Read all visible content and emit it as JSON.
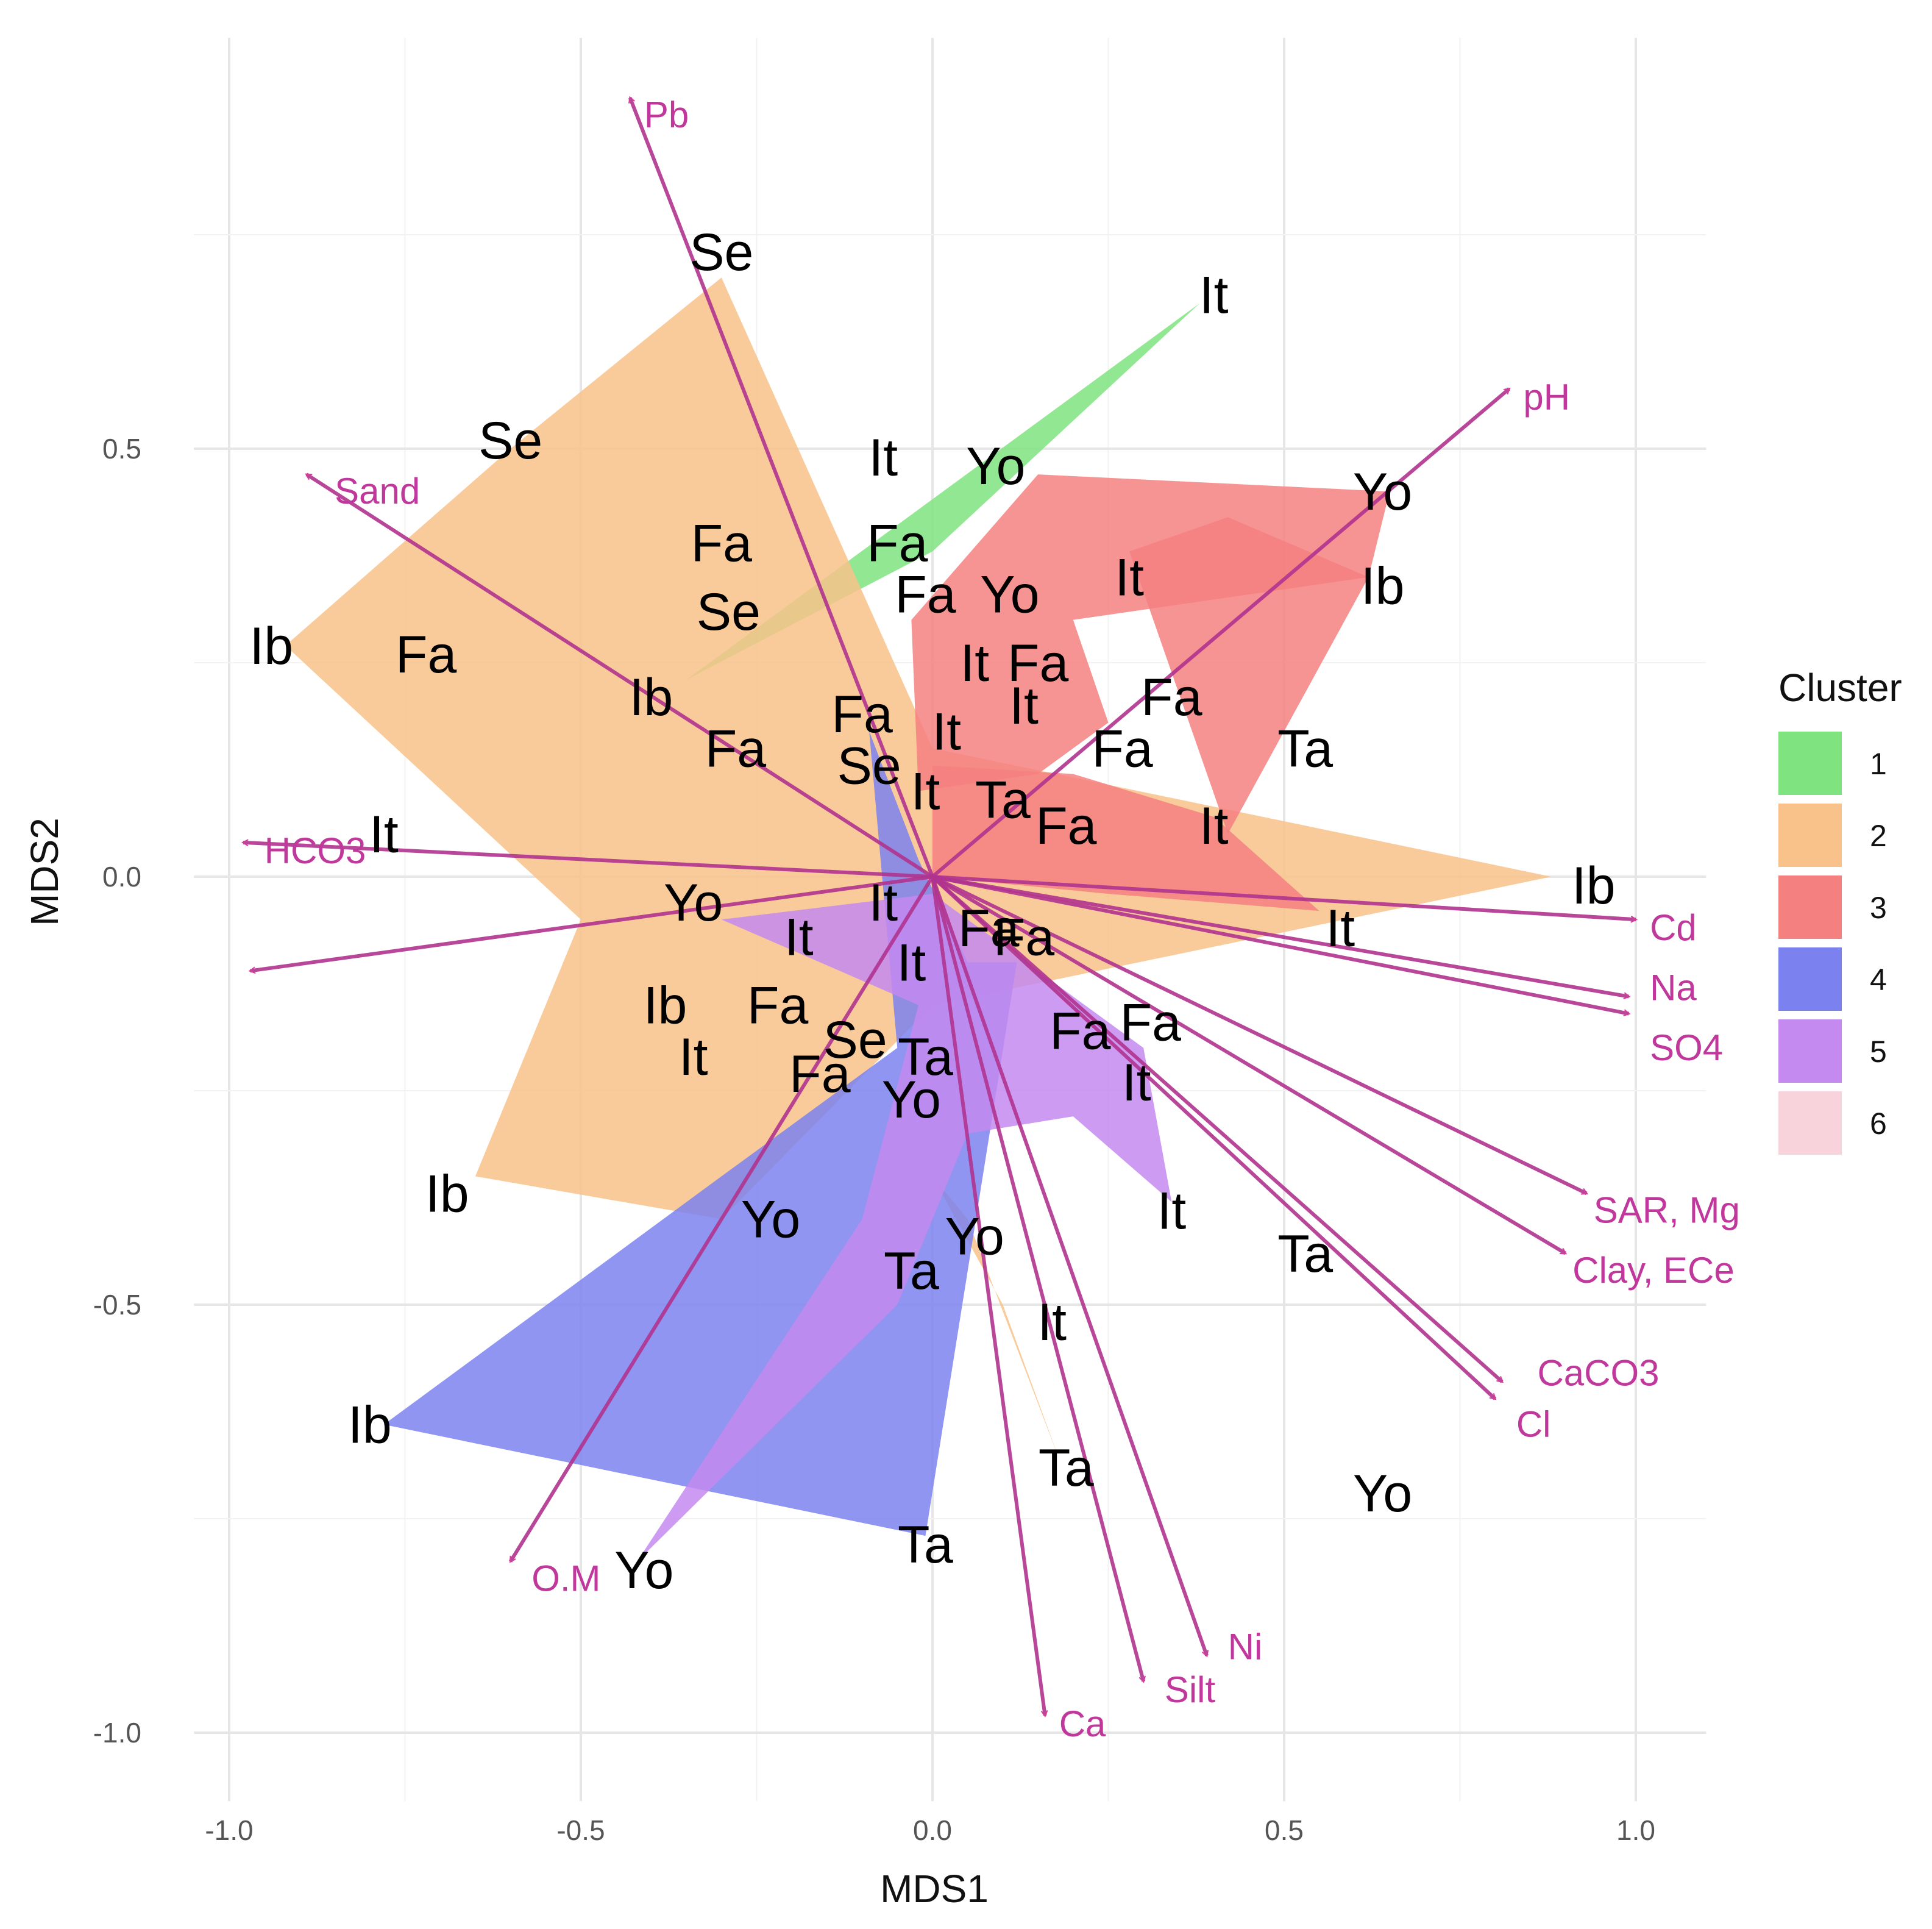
{
  "chart_data": {
    "type": "scatter",
    "xlabel": "MDS1",
    "ylabel": "MDS2",
    "xlim": [
      -1.05,
      1.1
    ],
    "ylim": [
      -1.08,
      0.98
    ],
    "x_ticks": [
      {
        "value": -1.0,
        "label": "-1.0"
      },
      {
        "value": -0.5,
        "label": "-0.5"
      },
      {
        "value": 0.0,
        "label": "0.0"
      },
      {
        "value": 0.5,
        "label": "0.5"
      },
      {
        "value": 1.0,
        "label": "1.0"
      }
    ],
    "y_ticks": [
      {
        "value": 0.5,
        "label": "0.5"
      },
      {
        "value": 0.0,
        "label": "0.0"
      },
      {
        "value": -0.5,
        "label": "-0.5"
      },
      {
        "value": -1.0,
        "label": "-1.0"
      }
    ],
    "legend": {
      "title": "Cluster",
      "entries": [
        {
          "label": "1",
          "color": "#7fe47f"
        },
        {
          "label": "2",
          "color": "#f8c28a"
        },
        {
          "label": "3",
          "color": "#f48080"
        },
        {
          "label": "4",
          "color": "#7b82ef"
        },
        {
          "label": "5",
          "color": "#c48af0"
        },
        {
          "label": "6",
          "color": "#f9d3dc"
        }
      ]
    },
    "hulls": [
      {
        "cluster": "1",
        "points": [
          [
            -0.35,
            0.23
          ],
          [
            0.38,
            0.67
          ],
          [
            0.0,
            0.38
          ]
        ]
      },
      {
        "cluster": "2",
        "points": [
          [
            -0.92,
            0.27
          ],
          [
            -0.6,
            0.5
          ],
          [
            -0.3,
            0.7
          ],
          [
            0.0,
            0.15
          ],
          [
            0.88,
            0.0
          ],
          [
            0.0,
            -0.15
          ],
          [
            -0.3,
            -0.4
          ],
          [
            -0.65,
            -0.35
          ],
          [
            -0.5,
            -0.05
          ]
        ]
      },
      {
        "cluster": "2",
        "points": [
          [
            0.0,
            -0.35
          ],
          [
            0.05,
            -0.4
          ],
          [
            0.18,
            -0.68
          ],
          [
            0.1,
            -0.5
          ]
        ]
      },
      {
        "cluster": "3",
        "points": [
          [
            -0.03,
            0.3
          ],
          [
            0.15,
            0.47
          ],
          [
            0.65,
            0.45
          ],
          [
            0.62,
            0.35
          ],
          [
            0.2,
            0.3
          ],
          [
            0.25,
            0.18
          ],
          [
            0.15,
            0.12
          ],
          [
            -0.02,
            0.1
          ]
        ]
      },
      {
        "cluster": "3",
        "points": [
          [
            0.28,
            0.38
          ],
          [
            0.42,
            0.42
          ],
          [
            0.62,
            0.35
          ],
          [
            0.42,
            0.05
          ]
        ]
      },
      {
        "cluster": "3",
        "points": [
          [
            0.0,
            0.13
          ],
          [
            0.2,
            0.12
          ],
          [
            0.4,
            0.07
          ],
          [
            0.55,
            -0.04
          ],
          [
            0.25,
            -0.02
          ],
          [
            0.0,
            0.0
          ]
        ]
      },
      {
        "cluster": "4",
        "points": [
          [
            -0.78,
            -0.64
          ],
          [
            -0.3,
            -0.35
          ],
          [
            -0.05,
            -0.2
          ],
          [
            -0.09,
            0.17
          ],
          [
            -0.02,
            0.02
          ],
          [
            0.05,
            -0.1
          ],
          [
            0.12,
            -0.1
          ],
          [
            -0.01,
            -0.77
          ]
        ]
      },
      {
        "cluster": "5",
        "points": [
          [
            -0.42,
            -0.8
          ],
          [
            -0.1,
            -0.4
          ],
          [
            -0.02,
            -0.15
          ],
          [
            -0.3,
            -0.05
          ],
          [
            0.0,
            -0.02
          ],
          [
            0.3,
            -0.2
          ],
          [
            0.34,
            -0.38
          ],
          [
            0.2,
            -0.28
          ],
          [
            0.05,
            -0.3
          ],
          [
            -0.05,
            -0.5
          ]
        ]
      }
    ],
    "sites": [
      {
        "label": "Se",
        "x": -0.3,
        "y": 0.73
      },
      {
        "label": "It",
        "x": 0.4,
        "y": 0.68
      },
      {
        "label": "Se",
        "x": -0.6,
        "y": 0.51
      },
      {
        "label": "Yo",
        "x": 0.09,
        "y": 0.48
      },
      {
        "label": "It",
        "x": -0.07,
        "y": 0.49
      },
      {
        "label": "Yo",
        "x": 0.64,
        "y": 0.45
      },
      {
        "label": "Fa",
        "x": -0.3,
        "y": 0.39
      },
      {
        "label": "Fa",
        "x": -0.05,
        "y": 0.39
      },
      {
        "label": "Se",
        "x": -0.29,
        "y": 0.31
      },
      {
        "label": "Fa",
        "x": -0.01,
        "y": 0.33
      },
      {
        "label": "Yo",
        "x": 0.11,
        "y": 0.33
      },
      {
        "label": "It",
        "x": 0.28,
        "y": 0.35
      },
      {
        "label": "Ib",
        "x": 0.64,
        "y": 0.34
      },
      {
        "label": "Ib",
        "x": -0.94,
        "y": 0.27
      },
      {
        "label": "Fa",
        "x": -0.72,
        "y": 0.26
      },
      {
        "label": "It",
        "x": 0.06,
        "y": 0.25
      },
      {
        "label": "Fa",
        "x": 0.15,
        "y": 0.25
      },
      {
        "label": "Ib",
        "x": -0.4,
        "y": 0.21
      },
      {
        "label": "Fa",
        "x": -0.1,
        "y": 0.19
      },
      {
        "label": "It",
        "x": 0.13,
        "y": 0.2
      },
      {
        "label": "Fa",
        "x": 0.34,
        "y": 0.21
      },
      {
        "label": "It",
        "x": 0.02,
        "y": 0.17
      },
      {
        "label": "Fa",
        "x": -0.28,
        "y": 0.15
      },
      {
        "label": "Fa",
        "x": 0.27,
        "y": 0.15
      },
      {
        "label": "Ta",
        "x": 0.53,
        "y": 0.15
      },
      {
        "label": "Se",
        "x": -0.09,
        "y": 0.13
      },
      {
        "label": "It",
        "x": -0.01,
        "y": 0.1
      },
      {
        "label": "Ta",
        "x": 0.1,
        "y": 0.09
      },
      {
        "label": "Fa",
        "x": 0.19,
        "y": 0.06
      },
      {
        "label": "It",
        "x": 0.4,
        "y": 0.06
      },
      {
        "label": "It",
        "x": -0.78,
        "y": 0.05
      },
      {
        "label": "Ib",
        "x": 0.94,
        "y": -0.01
      },
      {
        "label": "Yo",
        "x": -0.34,
        "y": -0.03
      },
      {
        "label": "It",
        "x": -0.07,
        "y": -0.03
      },
      {
        "label": "It",
        "x": -0.19,
        "y": -0.07
      },
      {
        "label": "Fa",
        "x": 0.08,
        "y": -0.06
      },
      {
        "label": "Fa",
        "x": 0.13,
        "y": -0.07
      },
      {
        "label": "It",
        "x": 0.58,
        "y": -0.06
      },
      {
        "label": "It",
        "x": -0.03,
        "y": -0.1
      },
      {
        "label": "Ib",
        "x": -0.38,
        "y": -0.15
      },
      {
        "label": "Fa",
        "x": -0.22,
        "y": -0.15
      },
      {
        "label": "Fa",
        "x": 0.21,
        "y": -0.18
      },
      {
        "label": "Fa",
        "x": 0.31,
        "y": -0.17
      },
      {
        "label": "Se",
        "x": -0.11,
        "y": -0.19
      },
      {
        "label": "Ta",
        "x": -0.01,
        "y": -0.21
      },
      {
        "label": "It",
        "x": -0.34,
        "y": -0.21
      },
      {
        "label": "Fa",
        "x": -0.16,
        "y": -0.23
      },
      {
        "label": "Yo",
        "x": -0.03,
        "y": -0.26
      },
      {
        "label": "It",
        "x": 0.29,
        "y": -0.24
      },
      {
        "label": "Ib",
        "x": -0.69,
        "y": -0.37
      },
      {
        "label": "Yo",
        "x": -0.23,
        "y": -0.4
      },
      {
        "label": "It",
        "x": 0.34,
        "y": -0.39
      },
      {
        "label": "Yo",
        "x": 0.06,
        "y": -0.42
      },
      {
        "label": "Ta",
        "x": -0.03,
        "y": -0.46
      },
      {
        "label": "Ta",
        "x": 0.53,
        "y": -0.44
      },
      {
        "label": "It",
        "x": 0.17,
        "y": -0.52
      },
      {
        "label": "Ib",
        "x": -0.8,
        "y": -0.64
      },
      {
        "label": "Ta",
        "x": 0.19,
        "y": -0.69
      },
      {
        "label": "Yo",
        "x": 0.64,
        "y": -0.72
      },
      {
        "label": "Ta",
        "x": -0.01,
        "y": -0.78
      },
      {
        "label": "Yo",
        "x": -0.41,
        "y": -0.81
      }
    ],
    "vectors": [
      {
        "label": "Pb",
        "x": -0.43,
        "y": 0.91,
        "label_x": -0.41,
        "label_y": 0.89,
        "anchor": "start"
      },
      {
        "label": "pH",
        "x": 0.82,
        "y": 0.57,
        "label_x": 0.84,
        "label_y": 0.56,
        "anchor": "start"
      },
      {
        "label": "Sand",
        "x": -0.89,
        "y": 0.47,
        "label_x": -0.85,
        "label_y": 0.45,
        "anchor": "start"
      },
      {
        "label": "HCO3",
        "x": -0.98,
        "y": 0.04,
        "label_x": -0.95,
        "label_y": 0.03,
        "anchor": "start"
      },
      {
        "label": "",
        "x": -0.97,
        "y": -0.11,
        "label_x": -0.97,
        "label_y": -0.11,
        "anchor": "start"
      },
      {
        "label": "Cd",
        "x": 1.0,
        "y": -0.05,
        "label_x": 1.02,
        "label_y": -0.06,
        "anchor": "start"
      },
      {
        "label": "Na",
        "x": 0.99,
        "y": -0.14,
        "label_x": 1.02,
        "label_y": -0.13,
        "anchor": "start"
      },
      {
        "label": "SO4",
        "x": 0.99,
        "y": -0.16,
        "label_x": 1.02,
        "label_y": -0.2,
        "anchor": "start"
      },
      {
        "label": "SAR, Mg",
        "x": 0.93,
        "y": -0.37,
        "label_x": 0.94,
        "label_y": -0.39,
        "anchor": "start"
      },
      {
        "label": "Clay, ECe",
        "x": 0.9,
        "y": -0.44,
        "label_x": 0.91,
        "label_y": -0.46,
        "anchor": "start"
      },
      {
        "label": "CaCO3",
        "x": 0.81,
        "y": -0.59,
        "label_x": 0.86,
        "label_y": -0.58,
        "anchor": "start"
      },
      {
        "label": "Cl",
        "x": 0.8,
        "y": -0.61,
        "label_x": 0.83,
        "label_y": -0.64,
        "anchor": "start"
      },
      {
        "label": "O.M",
        "x": -0.6,
        "y": -0.8,
        "label_x": -0.57,
        "label_y": -0.82,
        "anchor": "start"
      },
      {
        "label": "Ni",
        "x": 0.39,
        "y": -0.91,
        "label_x": 0.42,
        "label_y": -0.9,
        "anchor": "start"
      },
      {
        "label": "Silt",
        "x": 0.3,
        "y": -0.94,
        "label_x": 0.33,
        "label_y": -0.95,
        "anchor": "start"
      },
      {
        "label": "Ca",
        "x": 0.16,
        "y": -0.98,
        "label_x": 0.18,
        "label_y": -0.99,
        "anchor": "start"
      }
    ]
  },
  "colors": {
    "vector": "#b0338f",
    "vector_label": "#c0389c"
  }
}
